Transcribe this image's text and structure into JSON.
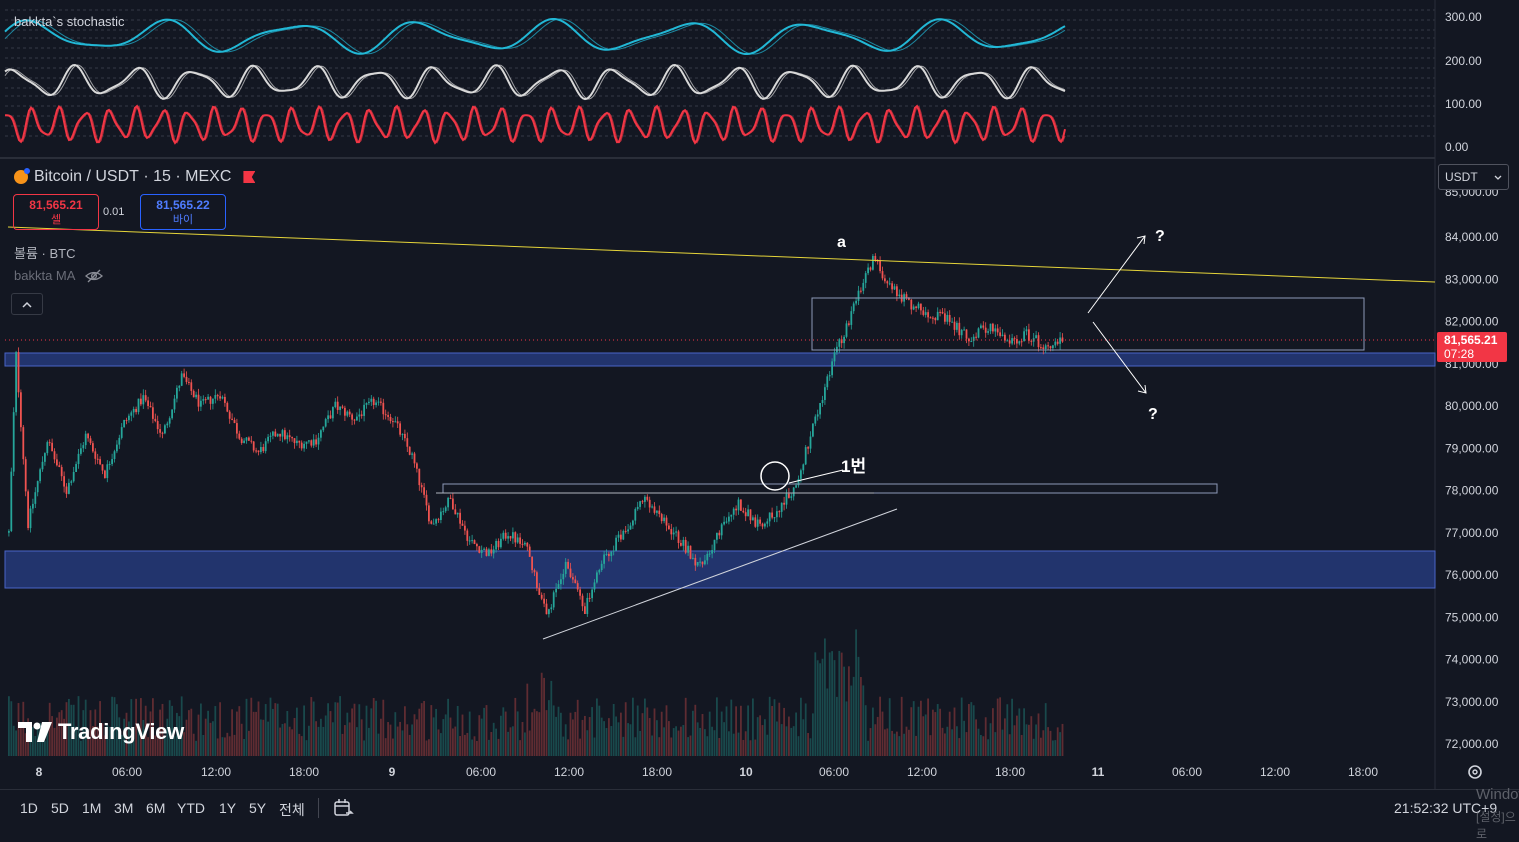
{
  "oscillator": {
    "title": "bakkta`s stochastic",
    "scale": [
      "300.00",
      "200.00",
      "100.00",
      "0.00"
    ],
    "colors": {
      "cyan": "#22b8d6",
      "white": "#d9d9d9",
      "red": "#f23645",
      "oversold": "#3f63d6"
    }
  },
  "symbol": {
    "name": "Bitcoin",
    "sep1": " / ",
    "quote": "USDT",
    "sep2": " · ",
    "interval": "15",
    "sep3": " · ",
    "exchange": "MEXC",
    "logo_icon": "bitcoin-logo-icon"
  },
  "trade": {
    "sell_price": "81,565.21",
    "sell_label": "셀",
    "spread": "0.01",
    "buy_price": "81,565.22",
    "buy_label": "바이"
  },
  "indicators": {
    "volume": "볼륨 · BTC",
    "ma": "bakkta MA",
    "ma_icon": "eye-off-icon",
    "collapse_icon": "chevron-up-icon"
  },
  "currency": {
    "selected": "USDT"
  },
  "price_axis": {
    "min": 72000,
    "max": 84000,
    "labels": [
      "84,000.00",
      "83,000.00",
      "82,000.00",
      "81,000.00",
      "80,000.00",
      "79,000.00",
      "78,000.00",
      "77,000.00",
      "76,000.00",
      "75,000.00",
      "74,000.00",
      "73,000.00",
      "72,000.00"
    ],
    "partial_top": "85,000.00"
  },
  "last_price": {
    "value": "81,565.21",
    "countdown": "07:28",
    "color": "#f23645"
  },
  "time_axis": {
    "labels": [
      "8",
      "06:00",
      "12:00",
      "18:00",
      "9",
      "06:00",
      "12:00",
      "18:00",
      "10",
      "06:00",
      "12:00",
      "18:00",
      "11",
      "06:00",
      "12:00",
      "18:00"
    ],
    "settings_icon": "gear-icon"
  },
  "chart_data": {
    "type": "candlestick",
    "symbol": "BTC/USDT",
    "interval": "15",
    "ylim": [
      72000,
      84000
    ],
    "path": [
      [
        0,
        77000
      ],
      [
        3,
        81200
      ],
      [
        8,
        77200
      ],
      [
        16,
        79200
      ],
      [
        24,
        78000
      ],
      [
        32,
        79300
      ],
      [
        40,
        78400
      ],
      [
        48,
        79600
      ],
      [
        56,
        80200
      ],
      [
        64,
        79300
      ],
      [
        72,
        80700
      ],
      [
        80,
        80000
      ],
      [
        88,
        80300
      ],
      [
        96,
        79300
      ],
      [
        104,
        78900
      ],
      [
        112,
        79400
      ],
      [
        120,
        79100
      ],
      [
        128,
        79200
      ],
      [
        136,
        80000
      ],
      [
        144,
        79700
      ],
      [
        152,
        80100
      ],
      [
        160,
        79700
      ],
      [
        168,
        78800
      ],
      [
        176,
        77200
      ],
      [
        184,
        77800
      ],
      [
        192,
        76800
      ],
      [
        200,
        76500
      ],
      [
        208,
        77000
      ],
      [
        216,
        76600
      ],
      [
        224,
        75000
      ],
      [
        232,
        76300
      ],
      [
        240,
        75200
      ],
      [
        248,
        76400
      ],
      [
        256,
        77000
      ],
      [
        264,
        77800
      ],
      [
        272,
        77300
      ],
      [
        280,
        76800
      ],
      [
        288,
        76200
      ],
      [
        296,
        77000
      ],
      [
        304,
        77700
      ],
      [
        312,
        77200
      ],
      [
        320,
        77500
      ],
      [
        328,
        78100
      ],
      [
        336,
        79700
      ],
      [
        344,
        81200
      ],
      [
        352,
        82300
      ],
      [
        360,
        83500
      ],
      [
        368,
        82800
      ],
      [
        376,
        82400
      ],
      [
        384,
        82200
      ],
      [
        392,
        82000
      ],
      [
        400,
        81600
      ],
      [
        408,
        81900
      ],
      [
        416,
        81500
      ],
      [
        424,
        81700
      ],
      [
        432,
        81400
      ],
      [
        440,
        81600
      ]
    ],
    "drawings": {
      "resistance_line": {
        "color": "#f5e33b"
      },
      "marker_a": "a",
      "marker_1": "1번",
      "question_up": "?",
      "question_down": "?",
      "support_zone_low": [
        75700,
        76600
      ],
      "support_zone_mid": [
        80900,
        81200
      ],
      "breakout_level": [
        77900,
        78200
      ],
      "consolidation_box": [
        81300,
        82600
      ]
    }
  },
  "bottom_bar": {
    "ranges": [
      "1D",
      "5D",
      "1M",
      "3M",
      "6M",
      "YTD",
      "1Y",
      "5Y",
      "전체"
    ],
    "compare_icon": "calendar-range-icon",
    "clock": "21:52:32 UTC+9"
  },
  "branding": {
    "logo": "TradingView"
  },
  "watermark": {
    "line1": "Window",
    "line2": "[설정]으로"
  }
}
